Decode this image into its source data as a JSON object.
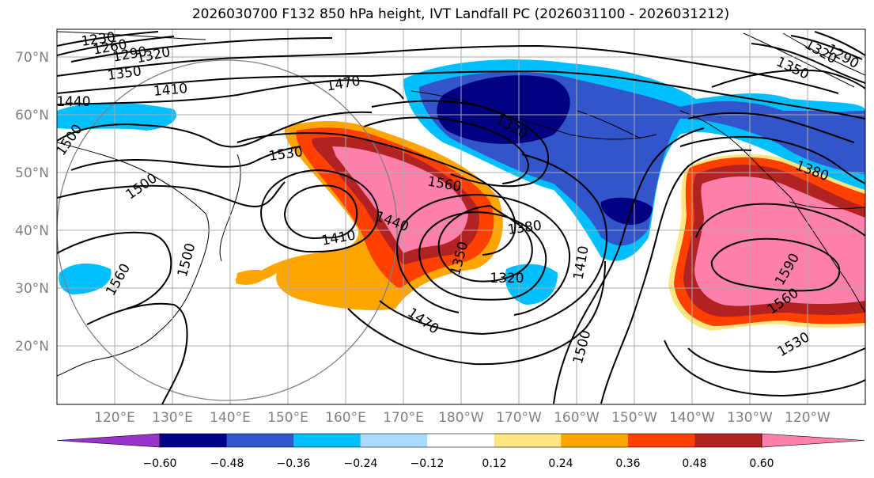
{
  "title": "2026030700 F132 850 hPa height, IVT Landfall PC (2026031100 - 2026031212)",
  "map": {
    "lat_labels": [
      "70°N",
      "60°N",
      "50°N",
      "40°N",
      "30°N",
      "20°N"
    ],
    "lon_labels": [
      "120°E",
      "130°E",
      "140°E",
      "150°E",
      "160°E",
      "170°E",
      "180°W",
      "170°W",
      "160°W",
      "150°W",
      "140°W",
      "130°W",
      "120°W"
    ],
    "contour_labels": [
      "1230",
      "1260",
      "1290",
      "1320",
      "1350",
      "1410",
      "1440",
      "1470",
      "1500",
      "1530",
      "1560",
      "1500",
      "1410",
      "1440",
      "1380",
      "1350",
      "1320",
      "1410",
      "1470",
      "1500",
      "1530",
      "1560",
      "1590",
      "1380",
      "1350",
      "1320",
      "1290",
      "1320",
      "1560",
      "1500",
      "1530"
    ]
  },
  "colorbar": {
    "ticks": [
      "−0.60",
      "−0.48",
      "−0.36",
      "−0.24",
      "−0.12",
      "0.12",
      "0.24",
      "0.36",
      "0.48",
      "0.60"
    ],
    "colors": [
      "#9933cc",
      "#00008b",
      "#3355cc",
      "#00bfff",
      "#aadcff",
      "#ffffff",
      "#ffe680",
      "#ffa500",
      "#ff4000",
      "#b22222",
      "#ff80aa"
    ]
  },
  "colors": {
    "deep_negative": "#000080",
    "negative": "#3355cc",
    "light_negative": "#00bfff",
    "yellow": "#ffe680",
    "orange": "#ffa500",
    "red_orange": "#ff4000",
    "dark_red": "#b22222",
    "pink": "#ff80aa"
  }
}
